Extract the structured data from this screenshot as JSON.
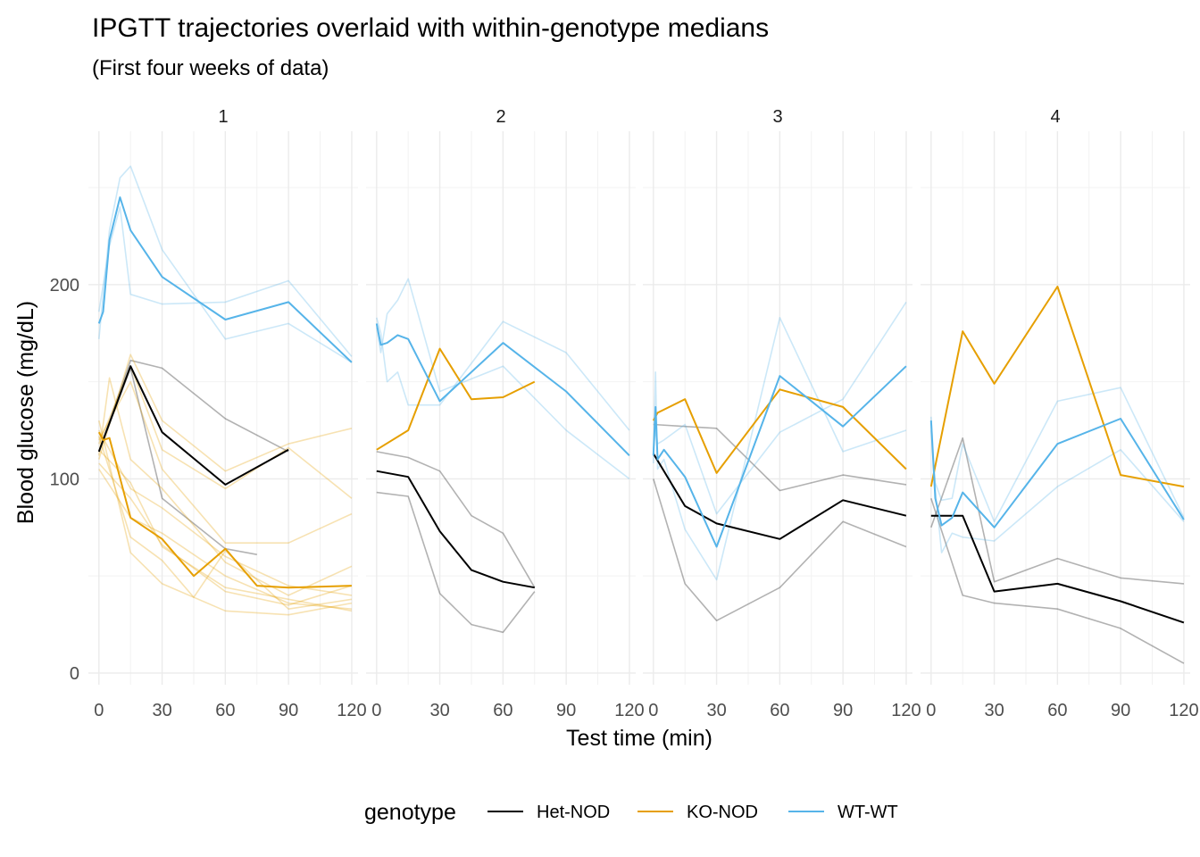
{
  "chart_data": {
    "type": "line",
    "title": "IPGTT trajectories overlaid with within-genotype medians",
    "subtitle": "(First four weeks of data)",
    "xlabel": "Test time (min)",
    "ylabel": "Blood glucose (mg/dL)",
    "xlim": [
      -5,
      123
    ],
    "ylim": [
      -6,
      279
    ],
    "x_ticks": [
      0,
      30,
      60,
      90,
      120
    ],
    "y_ticks": [
      0,
      100,
      200
    ],
    "grid": true,
    "legend": {
      "title": "genotype",
      "position": "bottom",
      "entries": [
        {
          "label": "Het-NOD",
          "color": "#000000"
        },
        {
          "label": "KO-NOD",
          "color": "#E69F00"
        },
        {
          "label": "WT-WT",
          "color": "#56B4E9"
        }
      ]
    },
    "panels": [
      {
        "label": "1",
        "series": [
          {
            "genotype": "Het-NOD",
            "kind": "median",
            "x": [
              0,
              15,
              30,
              60,
              90
            ],
            "y": [
              114,
              158,
              124,
              97,
              115
            ]
          },
          {
            "genotype": "Het-NOD",
            "kind": "individual",
            "x": [
              0,
              15,
              30,
              60,
              90
            ],
            "y": [
              114,
              161,
              157,
              131,
              114
            ]
          },
          {
            "genotype": "Het-NOD",
            "kind": "individual",
            "x": [
              0,
              15,
              30,
              60,
              75
            ],
            "y": [
              114,
              157,
              90,
              64,
              61
            ]
          },
          {
            "genotype": "KO-NOD",
            "kind": "median",
            "x": [
              0,
              2,
              5,
              15,
              30,
              45,
              60,
              75,
              90,
              120
            ],
            "y": [
              124,
              120,
              121,
              80,
              69,
              50,
              64,
              45,
              44,
              45
            ]
          },
          {
            "genotype": "KO-NOD",
            "kind": "individual",
            "x": [
              0,
              15,
              30,
              60,
              90,
              120
            ],
            "y": [
              110,
              164,
              130,
              104,
              118,
              126
            ]
          },
          {
            "genotype": "KO-NOD",
            "kind": "individual",
            "x": [
              0,
              15,
              30,
              60,
              90,
              120
            ],
            "y": [
              118,
              158,
              115,
              95,
              116,
              90
            ]
          },
          {
            "genotype": "KO-NOD",
            "kind": "individual",
            "x": [
              0,
              15,
              30,
              60,
              90,
              120
            ],
            "y": [
              120,
              150,
              105,
              67,
              67,
              82
            ]
          },
          {
            "genotype": "KO-NOD",
            "kind": "individual",
            "x": [
              0,
              5,
              15,
              30,
              60,
              90,
              120
            ],
            "y": [
              112,
              152,
              110,
              95,
              57,
              40,
              55
            ]
          },
          {
            "genotype": "KO-NOD",
            "kind": "individual",
            "x": [
              0,
              15,
              30,
              60,
              90,
              120
            ],
            "y": [
              125,
              95,
              85,
              60,
              45,
              40
            ]
          },
          {
            "genotype": "KO-NOD",
            "kind": "individual",
            "x": [
              0,
              15,
              30,
              60,
              90,
              120
            ],
            "y": [
              105,
              80,
              72,
              50,
              36,
              33
            ]
          },
          {
            "genotype": "KO-NOD",
            "kind": "individual",
            "x": [
              0,
              15,
              30,
              60,
              90,
              120
            ],
            "y": [
              130,
              62,
              46,
              32,
              30,
              36
            ]
          },
          {
            "genotype": "KO-NOD",
            "kind": "individual",
            "x": [
              0,
              15,
              30,
              60,
              90,
              120
            ],
            "y": [
              115,
              98,
              65,
              44,
              38,
              32
            ]
          },
          {
            "genotype": "KO-NOD",
            "kind": "individual",
            "x": [
              0,
              15,
              30,
              45,
              60,
              90,
              120
            ],
            "y": [
              122,
              70,
              58,
              39,
              63,
              33,
              38
            ]
          },
          {
            "genotype": "KO-NOD",
            "kind": "individual",
            "x": [
              0,
              15,
              30,
              60,
              90,
              120
            ],
            "y": [
              108,
              90,
              66,
              42,
              35,
              45
            ]
          },
          {
            "genotype": "WT-WT",
            "kind": "median",
            "x": [
              0,
              2,
              5,
              10,
              15,
              30,
              60,
              90,
              120
            ],
            "y": [
              180,
              186,
              223,
              245,
              228,
              204,
              182,
              191,
              160
            ]
          },
          {
            "genotype": "WT-WT",
            "kind": "individual",
            "x": [
              0,
              5,
              10,
              15,
              30,
              60,
              90,
              120
            ],
            "y": [
              172,
              228,
              255,
              261,
              218,
              172,
              180,
              160
            ]
          },
          {
            "genotype": "WT-WT",
            "kind": "individual",
            "x": [
              0,
              5,
              10,
              15,
              30,
              60,
              90,
              120
            ],
            "y": [
              186,
              220,
              240,
              195,
              190,
              191,
              202,
              163
            ]
          }
        ]
      },
      {
        "label": "2",
        "series": [
          {
            "genotype": "Het-NOD",
            "kind": "median",
            "x": [
              0,
              15,
              30,
              45,
              60,
              75
            ],
            "y": [
              104,
              101,
              73,
              53,
              47,
              44
            ]
          },
          {
            "genotype": "Het-NOD",
            "kind": "individual",
            "x": [
              0,
              15,
              30,
              45,
              60,
              75
            ],
            "y": [
              114,
              111,
              104,
              81,
              72,
              44
            ]
          },
          {
            "genotype": "Het-NOD",
            "kind": "individual",
            "x": [
              0,
              15,
              30,
              45,
              60,
              75
            ],
            "y": [
              93,
              91,
              41,
              25,
              21,
              42
            ]
          },
          {
            "genotype": "KO-NOD",
            "kind": "median",
            "x": [
              0,
              15,
              30,
              45,
              60,
              75
            ],
            "y": [
              115,
              125,
              167,
              141,
              142,
              150
            ]
          },
          {
            "genotype": "WT-WT",
            "kind": "median",
            "x": [
              0,
              2,
              5,
              10,
              15,
              30,
              60,
              90,
              120
            ],
            "y": [
              180,
              169,
              170,
              174,
              172,
              140,
              170,
              145,
              112
            ]
          },
          {
            "genotype": "WT-WT",
            "kind": "individual",
            "x": [
              0,
              2,
              5,
              10,
              15,
              30,
              60,
              90,
              120
            ],
            "y": [
              183,
              175,
              150,
              155,
              138,
              138,
              181,
              165,
              125
            ]
          },
          {
            "genotype": "WT-WT",
            "kind": "individual",
            "x": [
              0,
              2,
              5,
              10,
              15,
              30,
              60,
              90,
              120
            ],
            "y": [
              178,
              165,
              185,
              192,
              203,
              145,
              158,
              125,
              100
            ]
          }
        ]
      },
      {
        "label": "3",
        "series": [
          {
            "genotype": "Het-NOD",
            "kind": "median",
            "x": [
              0,
              15,
              30,
              60,
              90,
              120
            ],
            "y": [
              113,
              86,
              77,
              69,
              89,
              81
            ]
          },
          {
            "genotype": "Het-NOD",
            "kind": "individual",
            "x": [
              0,
              15,
              30,
              60,
              90,
              120
            ],
            "y": [
              128,
              127,
              126,
              94,
              102,
              97
            ]
          },
          {
            "genotype": "Het-NOD",
            "kind": "individual",
            "x": [
              0,
              15,
              30,
              60,
              90,
              120
            ],
            "y": [
              100,
              46,
              27,
              44,
              78,
              65
            ]
          },
          {
            "genotype": "KO-NOD",
            "kind": "median",
            "x": [
              0,
              2,
              15,
              30,
              60,
              90,
              120
            ],
            "y": [
              130,
              134,
              141,
              103,
              146,
              137,
              105
            ]
          },
          {
            "genotype": "WT-WT",
            "kind": "median",
            "x": [
              0,
              1,
              2,
              5,
              15,
              30,
              60,
              90,
              120
            ],
            "y": [
              112,
              137,
              110,
              115,
              101,
              65,
              153,
              127,
              158
            ]
          },
          {
            "genotype": "WT-WT",
            "kind": "individual",
            "x": [
              0,
              1,
              2,
              5,
              15,
              30,
              60,
              90,
              120
            ],
            "y": [
              108,
              155,
              105,
              110,
              74,
              48,
              183,
              114,
              125
            ]
          },
          {
            "genotype": "WT-WT",
            "kind": "individual",
            "x": [
              0,
              1,
              2,
              5,
              15,
              30,
              60,
              90,
              120
            ],
            "y": [
              115,
              125,
              118,
              120,
              128,
              82,
              124,
              141,
              191
            ]
          }
        ]
      },
      {
        "label": "4",
        "series": [
          {
            "genotype": "Het-NOD",
            "kind": "median",
            "x": [
              0,
              15,
              30,
              60,
              90,
              120
            ],
            "y": [
              81,
              81,
              42,
              46,
              37,
              26
            ]
          },
          {
            "genotype": "Het-NOD",
            "kind": "individual",
            "x": [
              0,
              15,
              30,
              60,
              90,
              120
            ],
            "y": [
              75,
              121,
              47,
              59,
              49,
              46
            ]
          },
          {
            "genotype": "Het-NOD",
            "kind": "individual",
            "x": [
              0,
              15,
              30,
              60,
              90,
              120
            ],
            "y": [
              90,
              40,
              36,
              33,
              23,
              5
            ]
          },
          {
            "genotype": "KO-NOD",
            "kind": "median",
            "x": [
              0,
              15,
              30,
              60,
              90,
              120
            ],
            "y": [
              96,
              176,
              149,
              199,
              102,
              96
            ]
          },
          {
            "genotype": "WT-WT",
            "kind": "median",
            "x": [
              0,
              2,
              5,
              10,
              15,
              30,
              60,
              90,
              120
            ],
            "y": [
              130,
              90,
              76,
              80,
              93,
              75,
              118,
              131,
              79
            ]
          },
          {
            "genotype": "WT-WT",
            "kind": "individual",
            "x": [
              0,
              2,
              5,
              10,
              15,
              30,
              60,
              90,
              120
            ],
            "y": [
              132,
              95,
              62,
              72,
              70,
              68,
              96,
              115,
              78
            ]
          },
          {
            "genotype": "WT-WT",
            "kind": "individual",
            "x": [
              0,
              2,
              5,
              10,
              15,
              30,
              60,
              90,
              120
            ],
            "y": [
              125,
              98,
              89,
              90,
              118,
              78,
              140,
              147,
              80
            ]
          }
        ]
      }
    ]
  }
}
